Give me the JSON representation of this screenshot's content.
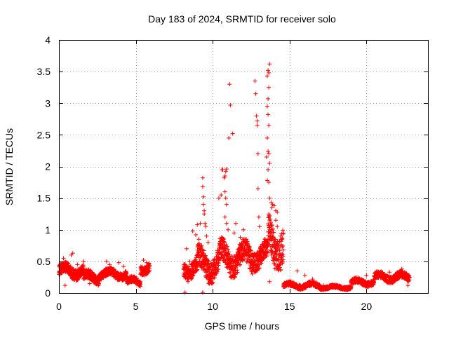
{
  "chart_data": {
    "type": "scatter",
    "title": "Day 183 of 2024, SRMTID for receiver solo",
    "xlabel": "GPS time / hours",
    "ylabel": "SRMTID / TECUs",
    "xlim": [
      0,
      24
    ],
    "ylim": [
      0,
      4
    ],
    "x_ticks": [
      0,
      5,
      10,
      15,
      20
    ],
    "x_tick_labels": [
      "0",
      "5",
      "10",
      "15",
      "20"
    ],
    "y_ticks": [
      0,
      0.5,
      1,
      1.5,
      2,
      2.5,
      3,
      3.5,
      4
    ],
    "y_tick_labels": [
      "0",
      "0.5",
      "1",
      "1.5",
      "2",
      "2.5",
      "3",
      "3.5",
      "4"
    ],
    "grid": true,
    "marker": "plus",
    "color": "#ff0000",
    "series": [
      {
        "name": "SRMTID",
        "baseline_segments": [
          {
            "x_start": 0.0,
            "x_end": 1.6,
            "y_center": 0.35,
            "y_spread": 0.14
          },
          {
            "x_start": 1.6,
            "x_end": 2.6,
            "y_center": 0.25,
            "y_spread": 0.12
          },
          {
            "x_start": 2.6,
            "x_end": 4.4,
            "y_center": 0.3,
            "y_spread": 0.1
          },
          {
            "x_start": 4.4,
            "x_end": 5.3,
            "y_center": 0.18,
            "y_spread": 0.08
          },
          {
            "x_start": 5.3,
            "x_end": 5.9,
            "y_center": 0.4,
            "y_spread": 0.12
          },
          {
            "x_start": 8.1,
            "x_end": 9.0,
            "y_center": 0.4,
            "y_spread": 0.2
          },
          {
            "x_start": 9.0,
            "x_end": 10.4,
            "y_center": 0.45,
            "y_spread": 0.3
          },
          {
            "x_start": 10.4,
            "x_end": 12.6,
            "y_center": 0.55,
            "y_spread": 0.3
          },
          {
            "x_start": 12.6,
            "x_end": 13.6,
            "y_center": 0.6,
            "y_spread": 0.25
          },
          {
            "x_start": 13.6,
            "x_end": 14.6,
            "y_center": 0.8,
            "y_spread": 0.45
          },
          {
            "x_start": 14.6,
            "x_end": 15.4,
            "y_center": 0.12,
            "y_spread": 0.06
          },
          {
            "x_start": 15.4,
            "x_end": 17.0,
            "y_center": 0.12,
            "y_spread": 0.06
          },
          {
            "x_start": 17.0,
            "x_end": 19.0,
            "y_center": 0.09,
            "y_spread": 0.04
          },
          {
            "x_start": 19.0,
            "x_end": 20.5,
            "y_center": 0.17,
            "y_spread": 0.07
          },
          {
            "x_start": 20.5,
            "x_end": 22.8,
            "y_center": 0.25,
            "y_spread": 0.09
          }
        ],
        "points": [
          [
            0.1,
            0.42
          ],
          [
            0.3,
            0.55
          ],
          [
            0.4,
            0.12
          ],
          [
            0.5,
            0.48
          ],
          [
            0.8,
            0.6
          ],
          [
            0.9,
            0.63
          ],
          [
            1.2,
            0.45
          ],
          [
            1.6,
            0.5
          ],
          [
            2.0,
            0.15
          ],
          [
            3.1,
            0.5
          ],
          [
            3.3,
            0.45
          ],
          [
            3.9,
            0.48
          ],
          [
            4.2,
            0.42
          ],
          [
            5.5,
            0.52
          ],
          [
            5.7,
            0.48
          ],
          [
            8.2,
            0.01
          ],
          [
            9.35,
            0.01
          ],
          [
            8.3,
            0.7
          ],
          [
            8.5,
            0.5
          ],
          [
            8.7,
            0.98
          ],
          [
            8.9,
            0.92
          ],
          [
            9.0,
            1.08
          ],
          [
            9.1,
            0.85
          ],
          [
            9.2,
            1.1
          ],
          [
            9.35,
            1.82
          ],
          [
            9.35,
            1.68
          ],
          [
            9.4,
            1.52
          ],
          [
            9.4,
            1.4
          ],
          [
            9.45,
            1.3
          ],
          [
            9.45,
            1.25
          ],
          [
            9.5,
            1.1
          ],
          [
            9.55,
            1.05
          ],
          [
            9.6,
            0.9
          ],
          [
            9.7,
            0.8
          ],
          [
            10.0,
            0.42
          ],
          [
            10.4,
            1.5
          ],
          [
            10.55,
            1.55
          ],
          [
            10.6,
            1.95
          ],
          [
            10.65,
            1.95
          ],
          [
            10.75,
            1.82
          ],
          [
            10.8,
            1.85
          ],
          [
            10.8,
            1.6
          ],
          [
            10.85,
            1.5
          ],
          [
            10.9,
            1.4
          ],
          [
            10.85,
            1.92
          ],
          [
            10.9,
            1.96
          ],
          [
            10.8,
            1.2
          ],
          [
            10.9,
            1.1
          ],
          [
            11.0,
            1.0
          ],
          [
            11.05,
            2.45
          ],
          [
            11.15,
            2.97
          ],
          [
            11.1,
            3.3
          ],
          [
            11.3,
            2.52
          ],
          [
            11.4,
            0.95
          ],
          [
            11.5,
            1.1
          ],
          [
            11.8,
            0.88
          ],
          [
            12.0,
            1.0
          ],
          [
            12.2,
            0.8
          ],
          [
            12.3,
            0.7
          ],
          [
            12.75,
            3.35
          ],
          [
            12.8,
            3.15
          ],
          [
            12.85,
            2.8
          ],
          [
            12.9,
            2.72
          ],
          [
            12.9,
            2.65
          ],
          [
            12.95,
            2.2
          ],
          [
            12.95,
            1.65
          ],
          [
            13.0,
            1.2
          ],
          [
            13.05,
            1.05
          ],
          [
            13.55,
            3.43
          ],
          [
            13.6,
            3.52
          ],
          [
            13.65,
            3.48
          ],
          [
            13.7,
            3.62
          ],
          [
            13.65,
            3.25
          ],
          [
            13.6,
            3.07
          ],
          [
            13.55,
            2.95
          ],
          [
            13.6,
            2.82
          ],
          [
            13.65,
            2.65
          ],
          [
            13.55,
            2.45
          ],
          [
            13.6,
            2.24
          ],
          [
            13.65,
            2.2
          ],
          [
            13.5,
            2.15
          ],
          [
            13.7,
            2.05
          ],
          [
            13.6,
            1.95
          ],
          [
            13.55,
            1.78
          ],
          [
            13.65,
            1.75
          ],
          [
            13.7,
            1.5
          ],
          [
            13.8,
            1.43
          ],
          [
            13.85,
            1.35
          ],
          [
            13.9,
            1.4
          ],
          [
            14.0,
            1.38
          ],
          [
            14.1,
            1.3
          ],
          [
            14.2,
            1.28
          ],
          [
            14.1,
            1.15
          ],
          [
            14.2,
            1.05
          ],
          [
            13.8,
            0.95
          ],
          [
            13.6,
            0.85
          ],
          [
            13.7,
            0.18
          ],
          [
            15.5,
            0.35
          ],
          [
            16.0,
            0.28
          ],
          [
            16.5,
            0.22
          ],
          [
            17.2,
            0.12
          ],
          [
            18.1,
            0.12
          ],
          [
            20.0,
            0.28
          ],
          [
            21.0,
            0.32
          ],
          [
            21.5,
            0.33
          ],
          [
            22.0,
            0.33
          ],
          [
            22.3,
            0.38
          ],
          [
            22.5,
            0.3
          ],
          [
            22.7,
            0.12
          ]
        ]
      }
    ]
  }
}
